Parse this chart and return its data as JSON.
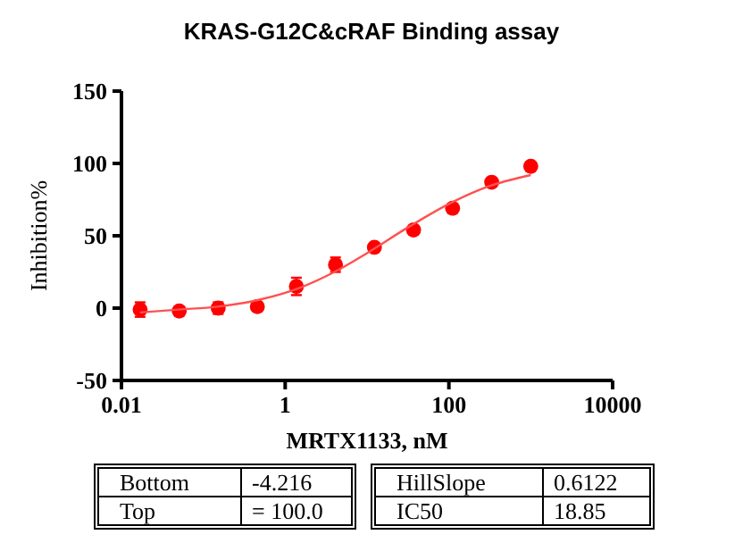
{
  "chart_data": {
    "type": "scatter",
    "title": "KRAS-G12C&cRAF Binding assay",
    "xlabel": "MRTX1133, nM",
    "ylabel": "Inhibition%",
    "log": "x",
    "xlim": [
      0.01,
      10000
    ],
    "xticks": [
      0.01,
      1,
      100,
      10000
    ],
    "ylim": [
      -50,
      150
    ],
    "yticks": [
      -50,
      0,
      50,
      100,
      150
    ],
    "grid": false,
    "series": [
      {
        "marker": "circle",
        "color": "#ff0000",
        "x": [
          0.0169,
          0.0508,
          0.152,
          0.457,
          1.37,
          4.12,
          12.3,
          37,
          111,
          333,
          1000
        ],
        "values": [
          -1,
          -2,
          0,
          1,
          15,
          30,
          42,
          54,
          69,
          87,
          98
        ],
        "errors": [
          5,
          2,
          4,
          1,
          6,
          5,
          2,
          2,
          2,
          2,
          1
        ]
      },
      {
        "type": "line",
        "marker": "none",
        "color": "#ff5050",
        "x": [
          0.0169,
          0.05,
          0.15,
          0.5,
          1.5,
          4,
          10,
          30,
          100,
          300,
          1000
        ],
        "values": [
          -3,
          -1,
          1,
          6,
          14,
          25,
          38,
          55,
          72,
          84,
          92
        ]
      }
    ],
    "annotations": [
      "Bottom",
      "-4.216",
      "Top",
      "= 100.0",
      "HillSlope",
      "0.6122",
      "IC50",
      "18.85"
    ]
  }
}
